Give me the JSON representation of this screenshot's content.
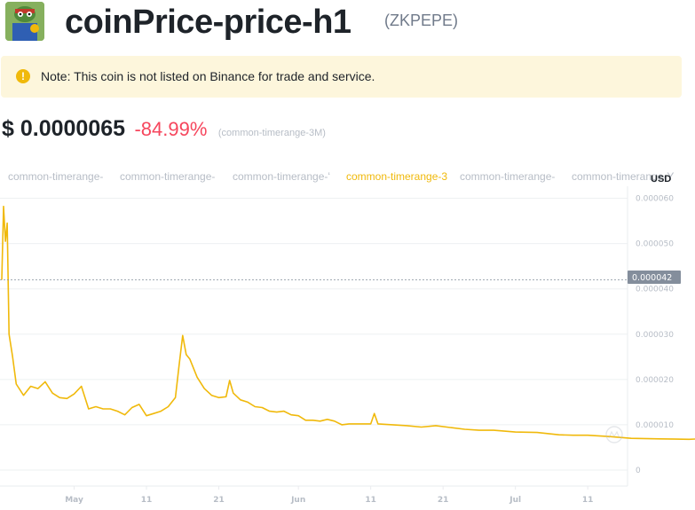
{
  "header": {
    "coin_name": "coinPrice-price-h1",
    "symbol": "(ZKPEPE)"
  },
  "note": {
    "icon": "exclamation-icon",
    "text": "Note: This coin is not listed on Binance for trade and service."
  },
  "price": {
    "value": "$ 0.0000065",
    "change": "-84.99%",
    "range_label": "(common-timerange-3M)"
  },
  "tabs": [
    {
      "label": "common-timerange-",
      "active": false
    },
    {
      "label": "common-timerange-",
      "active": false
    },
    {
      "label": "common-timerange-ʻ",
      "active": false
    },
    {
      "label": "common-timerange-3",
      "active": true
    },
    {
      "label": "common-timerange-",
      "active": false
    },
    {
      "label": "common-timerange-Y",
      "active": false
    }
  ],
  "colors": {
    "line": "#f0b90b",
    "negative": "#f6465d",
    "accent": "#f0b90b"
  },
  "chart_data": {
    "type": "line",
    "unit": "USD",
    "current_value_label": "0.000042",
    "yticks": [
      "0.000060",
      "0.000050",
      "0.000040",
      "0.000030",
      "0.000020",
      "0.000010",
      "0"
    ],
    "ylim": [
      0,
      6.03e-05
    ],
    "xticks": [
      "May",
      "11",
      "21",
      "Jun",
      "11",
      "21",
      "Jul",
      "11"
    ],
    "series": [
      {
        "values": [
          [
            "2023-04-21",
            4.2e-05
          ],
          [
            "2023-04-21 06h",
            5.82e-05
          ],
          [
            "2023-04-21 12h",
            5.05e-05
          ],
          [
            "2023-04-21 18h",
            5.45e-05
          ],
          [
            "2023-04-22",
            3e-05
          ],
          [
            "2023-04-22 12h",
            2.5e-05
          ],
          [
            "2023-04-23",
            1.9e-05
          ],
          [
            "2023-04-24",
            1.65e-05
          ],
          [
            "2023-04-25",
            1.85e-05
          ],
          [
            "2023-04-26",
            1.8e-05
          ],
          [
            "2023-04-27",
            1.95e-05
          ],
          [
            "2023-04-28",
            1.7e-05
          ],
          [
            "2023-04-29",
            1.6e-05
          ],
          [
            "2023-04-30",
            1.58e-05
          ],
          [
            "2023-05-01",
            1.68e-05
          ],
          [
            "2023-05-02",
            1.85e-05
          ],
          [
            "2023-05-03",
            1.35e-05
          ],
          [
            "2023-05-04",
            1.4e-05
          ],
          [
            "2023-05-05",
            1.35e-05
          ],
          [
            "2023-05-06",
            1.35e-05
          ],
          [
            "2023-05-07",
            1.3e-05
          ],
          [
            "2023-05-08",
            1.22e-05
          ],
          [
            "2023-05-09",
            1.38e-05
          ],
          [
            "2023-05-10",
            1.45e-05
          ],
          [
            "2023-05-11",
            1.2e-05
          ],
          [
            "2023-05-12",
            1.25e-05
          ],
          [
            "2023-05-13",
            1.3e-05
          ],
          [
            "2023-05-14",
            1.4e-05
          ],
          [
            "2023-05-15",
            1.6e-05
          ],
          [
            "2023-05-15 12h",
            2.3e-05
          ],
          [
            "2023-05-16",
            2.97e-05
          ],
          [
            "2023-05-16 12h",
            2.55e-05
          ],
          [
            "2023-05-17",
            2.45e-05
          ],
          [
            "2023-05-18",
            2.05e-05
          ],
          [
            "2023-05-19",
            1.8e-05
          ],
          [
            "2023-05-20",
            1.65e-05
          ],
          [
            "2023-05-21",
            1.6e-05
          ],
          [
            "2023-05-22",
            1.62e-05
          ],
          [
            "2023-05-22 12h",
            1.98e-05
          ],
          [
            "2023-05-23",
            1.7e-05
          ],
          [
            "2023-05-24",
            1.55e-05
          ],
          [
            "2023-05-25",
            1.5e-05
          ],
          [
            "2023-05-26",
            1.4e-05
          ],
          [
            "2023-05-27",
            1.38e-05
          ],
          [
            "2023-05-28",
            1.3e-05
          ],
          [
            "2023-05-29",
            1.28e-05
          ],
          [
            "2023-05-30",
            1.3e-05
          ],
          [
            "2023-05-31",
            1.22e-05
          ],
          [
            "2023-06-01",
            1.2e-05
          ],
          [
            "2023-06-02",
            1.1e-05
          ],
          [
            "2023-06-03",
            1.1e-05
          ],
          [
            "2023-06-04",
            1.08e-05
          ],
          [
            "2023-06-05",
            1.12e-05
          ],
          [
            "2023-06-06",
            1.08e-05
          ],
          [
            "2023-06-07",
            1e-05
          ],
          [
            "2023-06-08",
            1.02e-05
          ],
          [
            "2023-06-09",
            1.02e-05
          ],
          [
            "2023-06-10",
            1.02e-05
          ],
          [
            "2023-06-11",
            1.02e-05
          ],
          [
            "2023-06-11 12h",
            1.25e-05
          ],
          [
            "2023-06-12",
            1.02e-05
          ],
          [
            "2023-06-14",
            1e-05
          ],
          [
            "2023-06-16",
            9.8e-06
          ],
          [
            "2023-06-18",
            9.5e-06
          ],
          [
            "2023-06-20",
            9.8e-06
          ],
          [
            "2023-06-22",
            9.4e-06
          ],
          [
            "2023-06-24",
            9e-06
          ],
          [
            "2023-06-26",
            8.8e-06
          ],
          [
            "2023-06-28",
            8.8e-06
          ],
          [
            "2023-07-01",
            8.4e-06
          ],
          [
            "2023-07-04",
            8.3e-06
          ],
          [
            "2023-07-07",
            7.8e-06
          ],
          [
            "2023-07-09",
            7.7e-06
          ],
          [
            "2023-07-11",
            7.7e-06
          ],
          [
            "2023-07-14",
            7.4e-06
          ],
          [
            "2023-07-17",
            7e-06
          ],
          [
            "2023-07-21",
            6.9e-06
          ],
          [
            "2023-07-25",
            6.8e-06
          ],
          [
            "2023-07-28",
            7e-06
          ],
          [
            "2023-07-31",
            6.7e-06
          ],
          [
            "2023-08-03",
            6.4e-06
          ],
          [
            "2023-08-06",
            6.6e-06
          ],
          [
            "2023-08-09",
            6.4e-06
          ],
          [
            "2023-08-12",
            6.5e-06
          ]
        ]
      }
    ]
  }
}
